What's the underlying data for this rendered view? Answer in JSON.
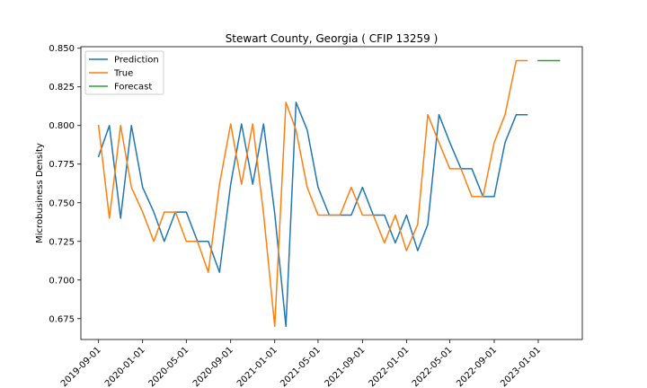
{
  "chart_data": {
    "type": "line",
    "title": "Stewart County, Georgia ( CFIP 13259 )",
    "xlabel": "",
    "ylabel": "Microbusiness Density",
    "x_axis_type": "date",
    "xlim": [
      "2019-07-14",
      "2023-05-03"
    ],
    "ylim": [
      0.6615,
      0.851
    ],
    "x_ticks": [
      "2019-09-01",
      "2020-01-01",
      "2020-05-01",
      "2020-09-01",
      "2021-01-01",
      "2021-05-01",
      "2021-09-01",
      "2022-01-01",
      "2022-05-01",
      "2022-09-01",
      "2023-01-01"
    ],
    "y_ticks": [
      "0.675",
      "0.700",
      "0.725",
      "0.750",
      "0.775",
      "0.800",
      "0.825",
      "0.850"
    ],
    "grid": false,
    "legend_position": "upper-left",
    "series": [
      {
        "name": "Prediction",
        "color": "#1f77b4",
        "points": [
          [
            "2019-09-01",
            0.78
          ],
          [
            "2019-10-01",
            0.8
          ],
          [
            "2019-11-01",
            0.74
          ],
          [
            "2019-12-01",
            0.8
          ],
          [
            "2020-01-01",
            0.76
          ],
          [
            "2020-02-01",
            0.744
          ],
          [
            "2020-03-01",
            0.725
          ],
          [
            "2020-04-01",
            0.744
          ],
          [
            "2020-05-01",
            0.744
          ],
          [
            "2020-06-01",
            0.725
          ],
          [
            "2020-07-01",
            0.725
          ],
          [
            "2020-08-01",
            0.705
          ],
          [
            "2020-09-01",
            0.762
          ],
          [
            "2020-10-01",
            0.801
          ],
          [
            "2020-11-01",
            0.762
          ],
          [
            "2020-12-01",
            0.801
          ],
          [
            "2021-01-01",
            0.743
          ],
          [
            "2021-02-01",
            0.67
          ],
          [
            "2021-03-01",
            0.815
          ],
          [
            "2021-04-01",
            0.797
          ],
          [
            "2021-05-01",
            0.76
          ],
          [
            "2021-06-01",
            0.742
          ],
          [
            "2021-07-01",
            0.742
          ],
          [
            "2021-08-01",
            0.742
          ],
          [
            "2021-09-01",
            0.76
          ],
          [
            "2021-10-01",
            0.742
          ],
          [
            "2021-11-01",
            0.742
          ],
          [
            "2021-12-01",
            0.724
          ],
          [
            "2022-01-01",
            0.742
          ],
          [
            "2022-02-01",
            0.719
          ],
          [
            "2022-03-01",
            0.736
          ],
          [
            "2022-04-01",
            0.807
          ],
          [
            "2022-05-01",
            0.789
          ],
          [
            "2022-06-01",
            0.772
          ],
          [
            "2022-07-01",
            0.772
          ],
          [
            "2022-08-01",
            0.754
          ],
          [
            "2022-09-01",
            0.754
          ],
          [
            "2022-10-01",
            0.789
          ],
          [
            "2022-11-01",
            0.807
          ],
          [
            "2022-12-01",
            0.807
          ]
        ]
      },
      {
        "name": "True",
        "color": "#ff7f0e",
        "points": [
          [
            "2019-09-01",
            0.8
          ],
          [
            "2019-10-01",
            0.74
          ],
          [
            "2019-11-01",
            0.8
          ],
          [
            "2019-12-01",
            0.76
          ],
          [
            "2020-01-01",
            0.744
          ],
          [
            "2020-02-01",
            0.725
          ],
          [
            "2020-03-01",
            0.744
          ],
          [
            "2020-04-01",
            0.744
          ],
          [
            "2020-05-01",
            0.725
          ],
          [
            "2020-06-01",
            0.725
          ],
          [
            "2020-07-01",
            0.705
          ],
          [
            "2020-08-01",
            0.762
          ],
          [
            "2020-09-01",
            0.801
          ],
          [
            "2020-10-01",
            0.762
          ],
          [
            "2020-11-01",
            0.801
          ],
          [
            "2020-12-01",
            0.743
          ],
          [
            "2021-01-01",
            0.67
          ],
          [
            "2021-02-01",
            0.815
          ],
          [
            "2021-03-01",
            0.797
          ],
          [
            "2021-04-01",
            0.76
          ],
          [
            "2021-05-01",
            0.742
          ],
          [
            "2021-06-01",
            0.742
          ],
          [
            "2021-07-01",
            0.742
          ],
          [
            "2021-08-01",
            0.76
          ],
          [
            "2021-09-01",
            0.742
          ],
          [
            "2021-10-01",
            0.742
          ],
          [
            "2021-11-01",
            0.724
          ],
          [
            "2021-12-01",
            0.742
          ],
          [
            "2022-01-01",
            0.719
          ],
          [
            "2022-02-01",
            0.736
          ],
          [
            "2022-03-01",
            0.807
          ],
          [
            "2022-04-01",
            0.789
          ],
          [
            "2022-05-01",
            0.772
          ],
          [
            "2022-06-01",
            0.772
          ],
          [
            "2022-07-01",
            0.754
          ],
          [
            "2022-08-01",
            0.754
          ],
          [
            "2022-09-01",
            0.789
          ],
          [
            "2022-10-01",
            0.807
          ],
          [
            "2022-11-01",
            0.842
          ],
          [
            "2022-12-01",
            0.842
          ]
        ]
      },
      {
        "name": "Forecast",
        "color": "#2ca02c",
        "points": [
          [
            "2023-01-01",
            0.842
          ],
          [
            "2023-02-01",
            0.842
          ],
          [
            "2023-03-01",
            0.842
          ]
        ]
      }
    ]
  }
}
